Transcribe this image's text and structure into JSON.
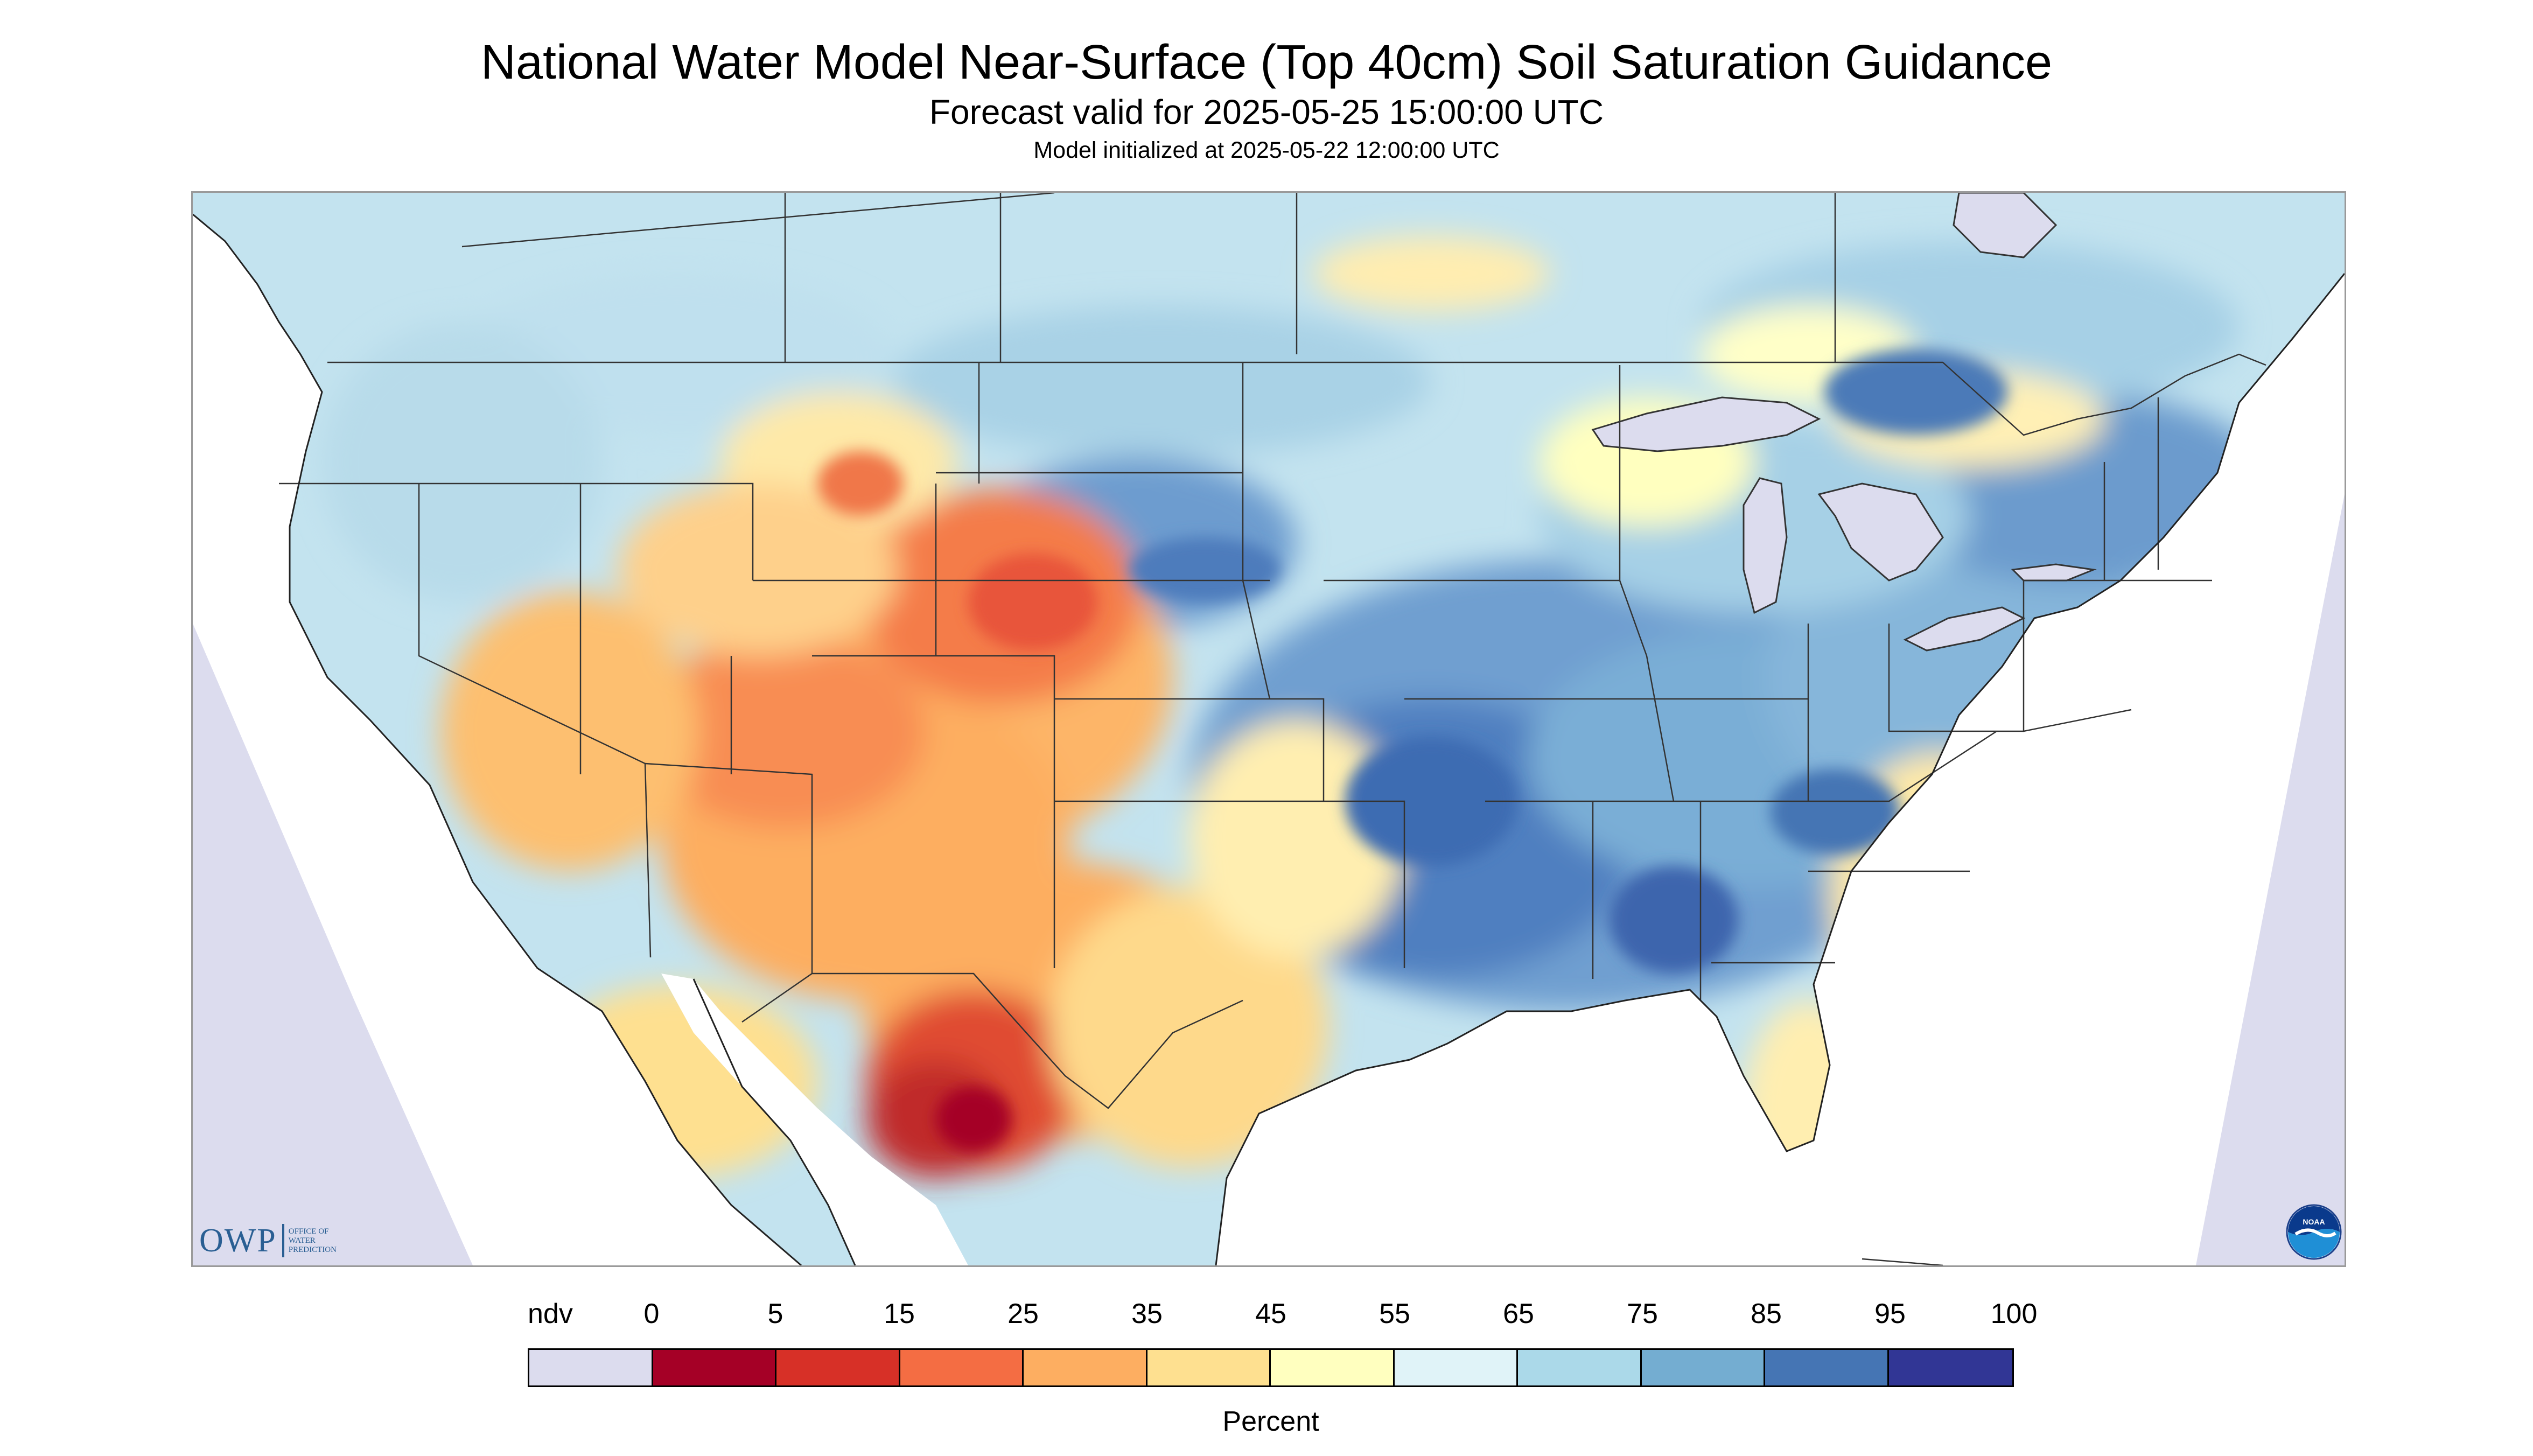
{
  "header": {
    "title": "National Water Model Near-Surface (Top 40cm) Soil Saturation Guidance",
    "subtitle": "Forecast valid for 2025-05-25 15:00:00 UTC",
    "model_init": "Model initialized at 2025-05-22 12:00:00 UTC"
  },
  "map": {
    "nodata_color": "#dcdcee",
    "water_color": "#dcdcee",
    "background_color": "#ffffff",
    "border_color": "#333333"
  },
  "logos": {
    "owp_text": "OWP",
    "owp_sub": [
      "OFFICE OF",
      "WATER",
      "PREDICTION"
    ],
    "noaa_text": "NOAA"
  },
  "legend": {
    "labels": [
      "ndv",
      "0",
      "5",
      "15",
      "25",
      "35",
      "45",
      "55",
      "65",
      "75",
      "85",
      "95",
      "100"
    ],
    "colors": [
      "#dcdcee",
      "#a50026",
      "#d73027",
      "#f46d43",
      "#fdae61",
      "#fee090",
      "#ffffbf",
      "#e0f3f8",
      "#abd9e9",
      "#74add1",
      "#4575b4",
      "#313695"
    ],
    "unit": "Percent"
  }
}
